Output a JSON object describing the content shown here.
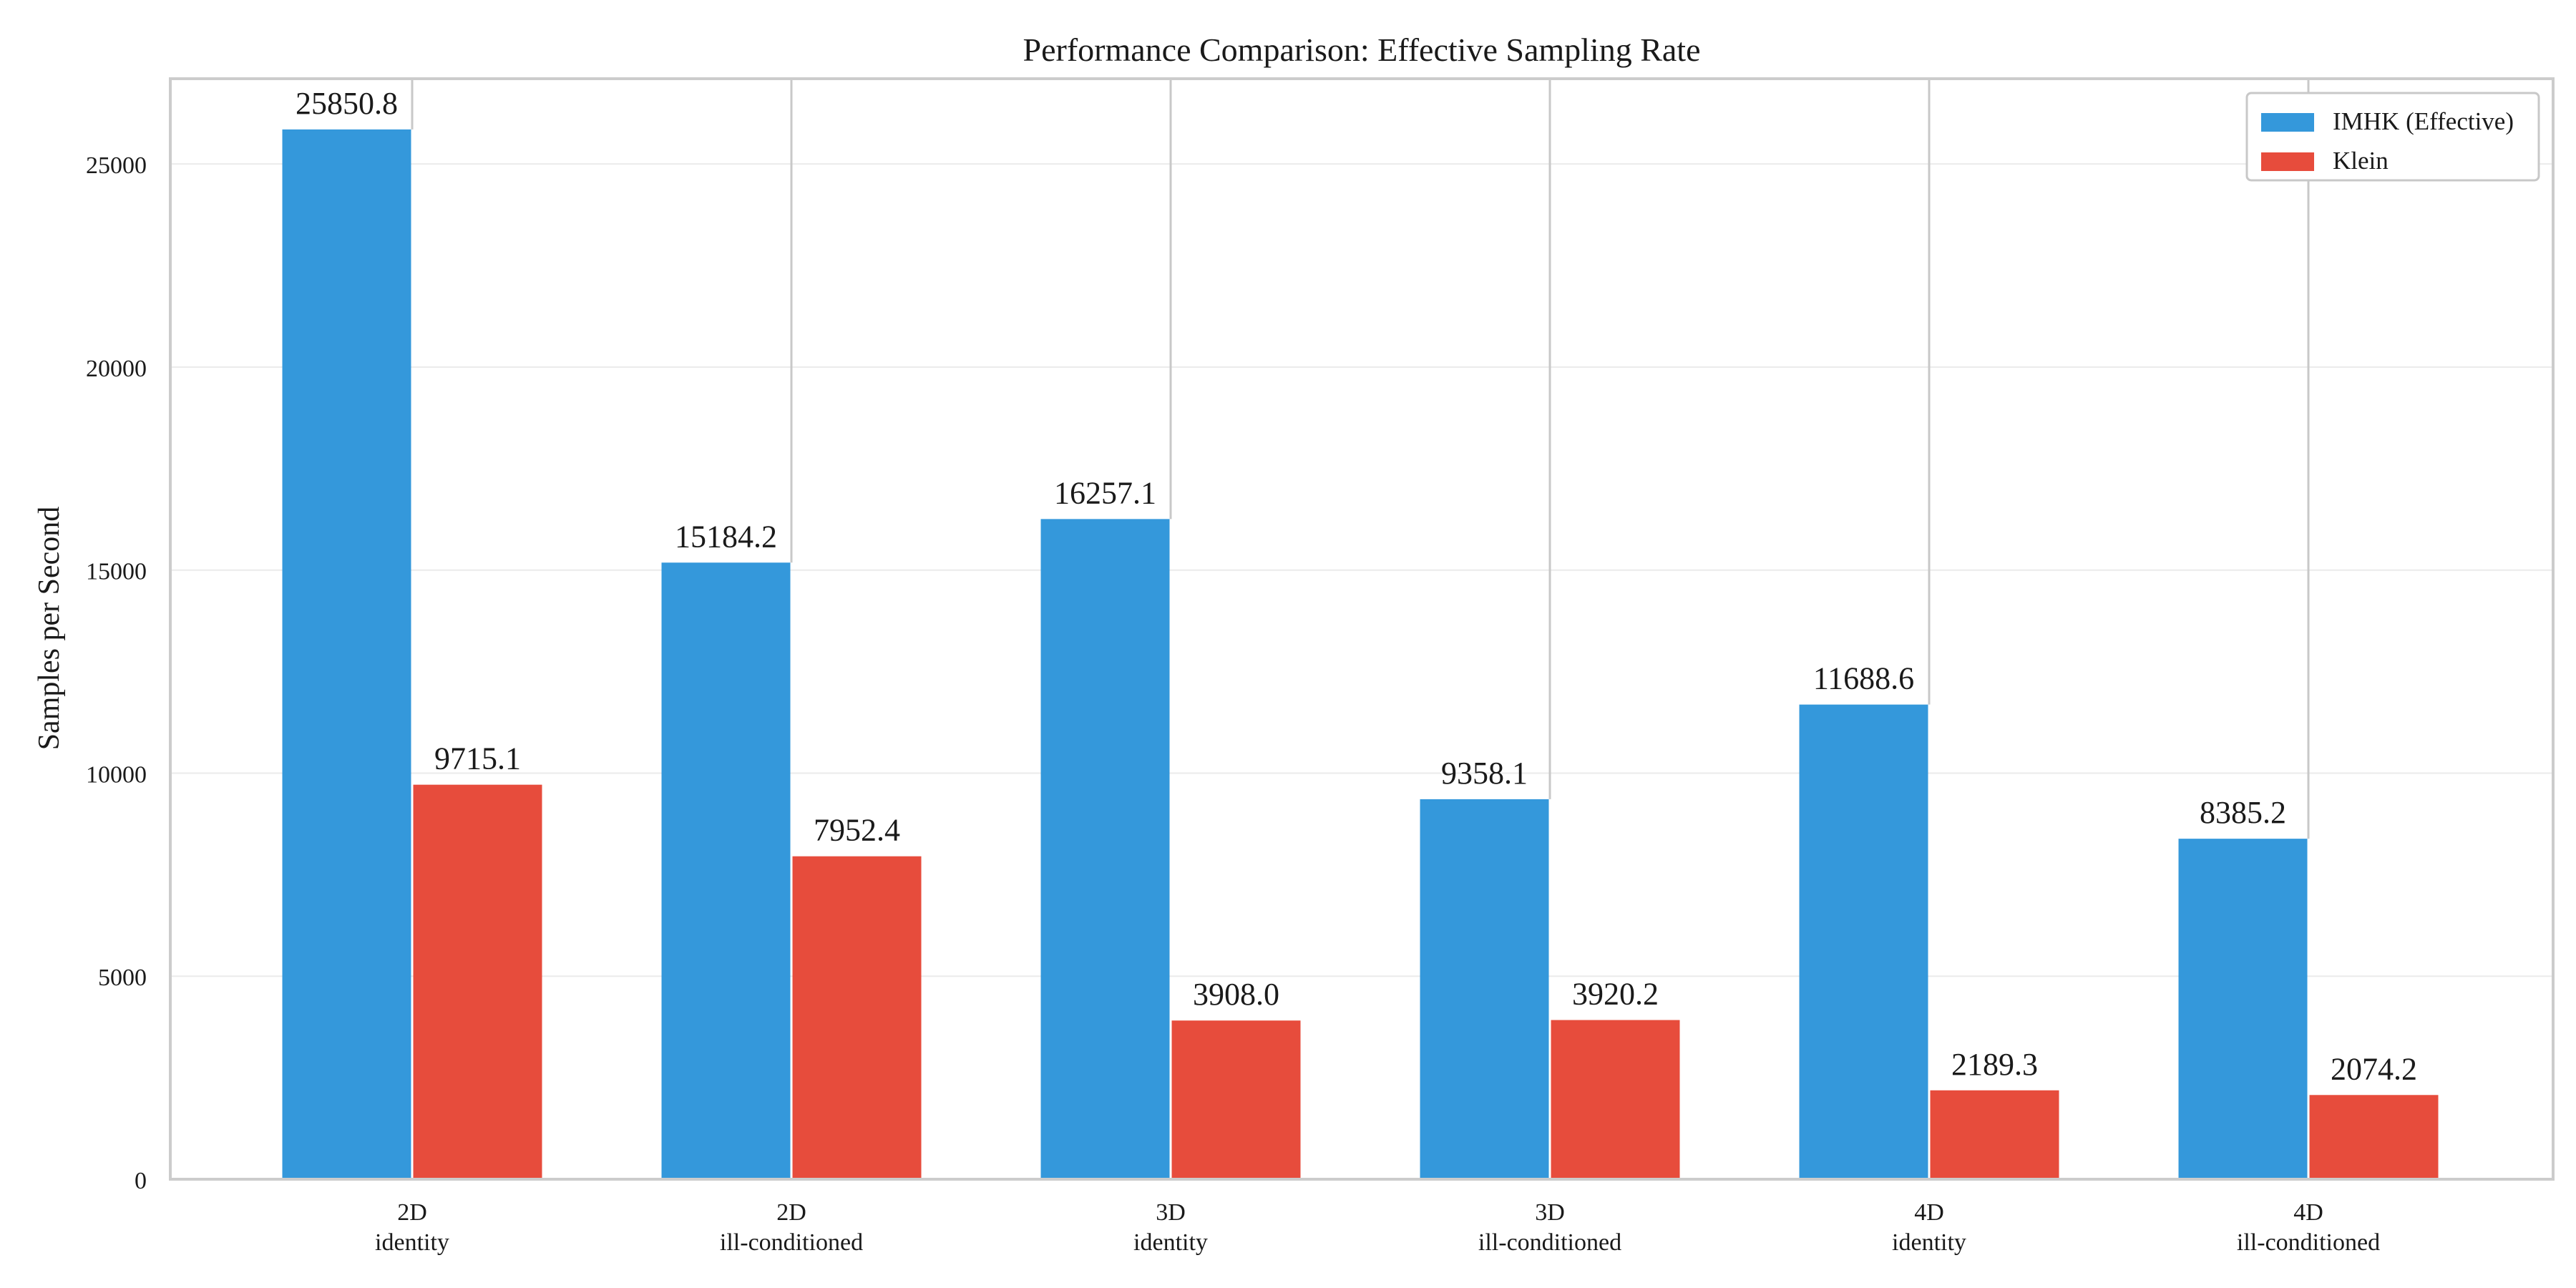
{
  "chart_data": {
    "type": "bar",
    "title": "Performance Comparison: Effective Sampling Rate",
    "xlabel": "",
    "ylabel": "Samples per Second",
    "categories": [
      [
        "2D",
        "identity"
      ],
      [
        "2D",
        "ill-conditioned"
      ],
      [
        "3D",
        "identity"
      ],
      [
        "3D",
        "ill-conditioned"
      ],
      [
        "4D",
        "identity"
      ],
      [
        "4D",
        "ill-conditioned"
      ]
    ],
    "series": [
      {
        "name": "IMHK (Effective)",
        "color": "#3498db",
        "values": [
          25850.8,
          15184.2,
          16257.1,
          9358.1,
          11688.6,
          8385.2
        ],
        "labels": [
          "25850.8",
          "15184.2",
          "16257.1",
          "9358.1",
          "11688.6",
          "8385.2"
        ]
      },
      {
        "name": "Klein",
        "color": "#e74c3c",
        "values": [
          9715.1,
          7952.4,
          3908.0,
          3920.2,
          2189.3,
          2074.2
        ],
        "labels": [
          "9715.1",
          "7952.4",
          "3908.0",
          "3920.2",
          "2189.3",
          "2074.2"
        ]
      }
    ],
    "ylim": [
      0,
      27100
    ],
    "yticks": [
      0,
      5000,
      10000,
      15000,
      20000,
      25000
    ],
    "ytick_labels": [
      "0",
      "5000",
      "10000",
      "15000",
      "20000",
      "25000"
    ],
    "grid": "horizontal",
    "legend_position": "top-right"
  }
}
